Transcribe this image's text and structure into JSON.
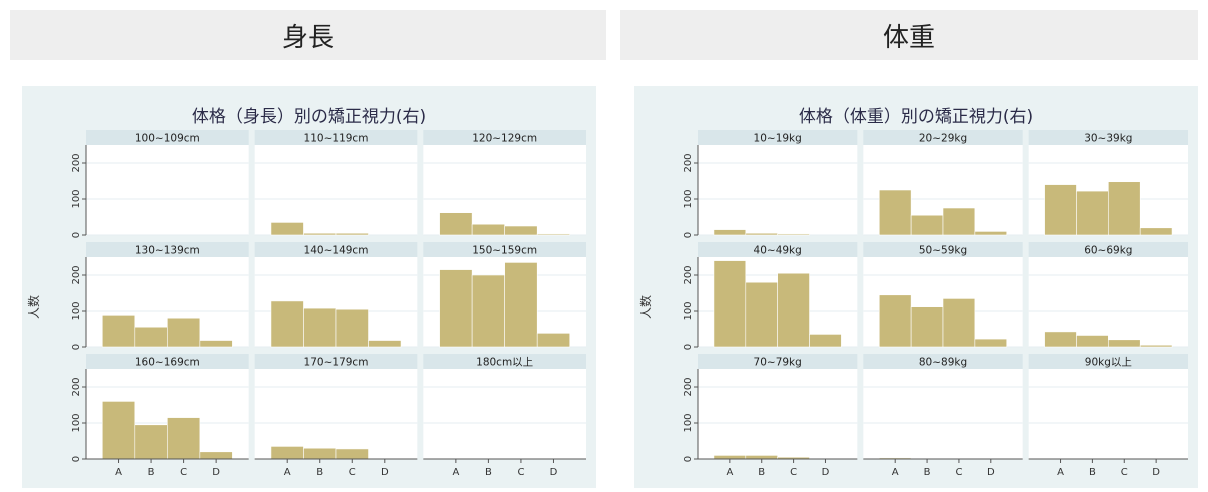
{
  "headers": {
    "left": "身長",
    "right": "体重"
  },
  "chart_data": [
    {
      "type": "bar",
      "title": "体格（身長）別の矯正視力(右)",
      "ylabel": "人数",
      "ylim": [
        0,
        250
      ],
      "yticks": [
        0,
        100,
        200
      ],
      "categories": [
        "A",
        "B",
        "C",
        "D"
      ],
      "grid": true,
      "bar_color": "#c8b97a",
      "panels": [
        {
          "label": "100~109cm",
          "values": [
            0,
            0,
            0,
            0
          ]
        },
        {
          "label": "110~119cm",
          "values": [
            35,
            5,
            5,
            0
          ]
        },
        {
          "label": "120~129cm",
          "values": [
            62,
            30,
            25,
            3
          ]
        },
        {
          "label": "130~139cm",
          "values": [
            88,
            55,
            80,
            18
          ]
        },
        {
          "label": "140~149cm",
          "values": [
            128,
            108,
            105,
            18
          ]
        },
        {
          "label": "150~159cm",
          "values": [
            215,
            200,
            235,
            38
          ]
        },
        {
          "label": "160~169cm",
          "values": [
            160,
            95,
            115,
            20
          ]
        },
        {
          "label": "170~179cm",
          "values": [
            35,
            30,
            28,
            0
          ]
        },
        {
          "label": "180cm以上",
          "values": [
            2,
            1,
            2,
            0
          ]
        }
      ]
    },
    {
      "type": "bar",
      "title": "体格（体重）別の矯正視力(右)",
      "ylabel": "人数",
      "ylim": [
        0,
        250
      ],
      "yticks": [
        0,
        100,
        200
      ],
      "categories": [
        "A",
        "B",
        "C",
        "D"
      ],
      "grid": true,
      "bar_color": "#c8b97a",
      "panels": [
        {
          "label": "10~19kg",
          "values": [
            15,
            5,
            3,
            0
          ]
        },
        {
          "label": "20~29kg",
          "values": [
            125,
            55,
            75,
            10
          ]
        },
        {
          "label": "30~39kg",
          "values": [
            140,
            122,
            148,
            20
          ]
        },
        {
          "label": "40~49kg",
          "values": [
            240,
            180,
            205,
            35
          ]
        },
        {
          "label": "50~59kg",
          "values": [
            145,
            112,
            135,
            22
          ]
        },
        {
          "label": "60~69kg",
          "values": [
            42,
            32,
            20,
            5
          ]
        },
        {
          "label": "70~79kg",
          "values": [
            10,
            10,
            5,
            0
          ]
        },
        {
          "label": "80~89kg",
          "values": [
            3,
            2,
            2,
            0
          ]
        },
        {
          "label": "90kg以上",
          "values": [
            1,
            1,
            1,
            0
          ]
        }
      ]
    }
  ]
}
